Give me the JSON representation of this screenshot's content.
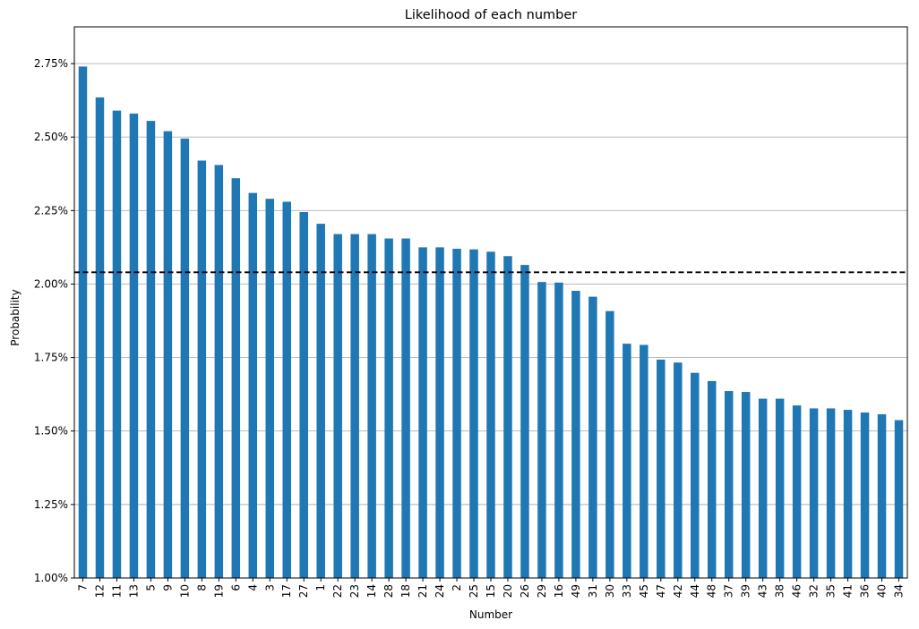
{
  "chart_data": {
    "type": "bar",
    "title": "Likelihood of each number",
    "xlabel": "Number",
    "ylabel": "Probability",
    "ylim": [
      1.0,
      2.875
    ],
    "y_unit": "%",
    "y_ticks": [
      "1.00%",
      "1.25%",
      "1.50%",
      "1.75%",
      "2.00%",
      "2.25%",
      "2.50%",
      "2.75%"
    ],
    "y_tick_values": [
      1.0,
      1.25,
      1.5,
      1.75,
      2.0,
      2.25,
      2.5,
      2.75
    ],
    "grid": "horizontal",
    "bar_color": "#1f77b4",
    "reference_line": {
      "value": 2.04,
      "style": "dashed",
      "color": "#000000"
    },
    "categories": [
      "7",
      "12",
      "11",
      "13",
      "5",
      "9",
      "10",
      "8",
      "19",
      "6",
      "4",
      "3",
      "17",
      "27",
      "1",
      "22",
      "23",
      "14",
      "28",
      "18",
      "21",
      "24",
      "2",
      "25",
      "15",
      "20",
      "26",
      "29",
      "16",
      "49",
      "31",
      "30",
      "33",
      "45",
      "47",
      "42",
      "44",
      "48",
      "37",
      "39",
      "43",
      "38",
      "46",
      "32",
      "35",
      "41",
      "36",
      "40",
      "34"
    ],
    "values": [
      2.74,
      2.635,
      2.59,
      2.58,
      2.555,
      2.52,
      2.495,
      2.42,
      2.405,
      2.36,
      2.31,
      2.29,
      2.28,
      2.245,
      2.205,
      2.17,
      2.17,
      2.17,
      2.155,
      2.155,
      2.125,
      2.125,
      2.12,
      2.118,
      2.11,
      2.095,
      2.065,
      2.007,
      2.005,
      1.977,
      1.957,
      1.908,
      1.797,
      1.793,
      1.743,
      1.733,
      1.698,
      1.67,
      1.636,
      1.633,
      1.61,
      1.61,
      1.587,
      1.577,
      1.577,
      1.572,
      1.563,
      1.557,
      1.537
    ]
  }
}
